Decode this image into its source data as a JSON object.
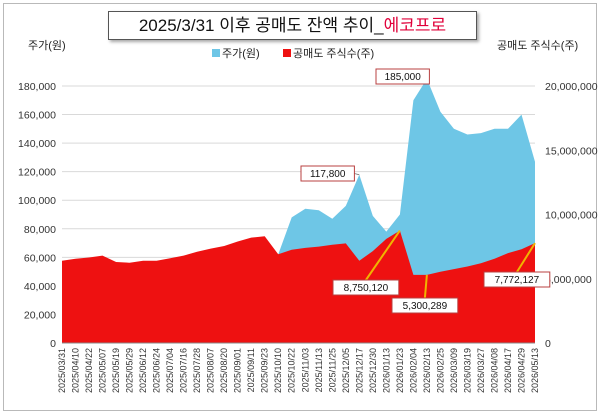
{
  "chart_data": {
    "type": "area",
    "title": "2025/3/31 이후 공매도 잔액 추이_",
    "title_highlight": "에코프로",
    "ylabel_left": "주가(원)",
    "ylabel_right": "공매도 주식수(주)",
    "legend": [
      "주가(원)",
      "공매도 주식수(주)"
    ],
    "legend_position": "top-center",
    "grid": true,
    "colors": {
      "price": "#6ec6e6",
      "short": "#ee1111",
      "callout": "#f0b400",
      "label_border": "#b84040"
    },
    "ylim_left": [
      0,
      180000
    ],
    "yticks_left": [
      "0",
      "20,000",
      "40,000",
      "60,000",
      "80,000",
      "100,000",
      "120,000",
      "140,000",
      "160,000",
      "180,000"
    ],
    "ylim_right": [
      0,
      20000000
    ],
    "yticks_right": [
      "0",
      "5,000,000",
      "10,000,000",
      "15,000,000",
      "20,000,000"
    ],
    "x_dates": [
      "2025/03/31",
      "2025/04/10",
      "2025/04/22",
      "2025/05/07",
      "2025/05/19",
      "2025/05/29",
      "2025/06/12",
      "2025/06/24",
      "2025/07/04",
      "2025/07/16",
      "2025/07/28",
      "2025/08/07",
      "2025/08/20",
      "2025/09/01",
      "2025/09/11",
      "2025/09/23",
      "2025/10/10",
      "2025/10/22",
      "2025/11/03",
      "2025/11/13",
      "2025/11/25",
      "2025/12/05",
      "2025/12/17",
      "2025/12/30",
      "2026/01/13",
      "2026/01/23",
      "2026/02/04",
      "2026/02/13",
      "2026/02/25",
      "2026/03/09",
      "2026/03/19",
      "2026/03/27",
      "2026/04/08",
      "2026/04/17",
      "2026/04/29",
      "2026/05/13"
    ],
    "price": [
      50000,
      49000,
      51000,
      49500,
      47000,
      47500,
      49000,
      47500,
      48500,
      47000,
      49000,
      53000,
      58000,
      63000,
      64500,
      66000,
      62000,
      88000,
      94000,
      93000,
      87000,
      96000,
      117800,
      89000,
      78000,
      90000,
      170000,
      185000,
      162000,
      150000,
      146000,
      147000,
      150000,
      150000,
      160000,
      127000
    ],
    "short": [
      6400000,
      6550000,
      6650000,
      6800000,
      6300000,
      6250000,
      6400000,
      6400000,
      6600000,
      6800000,
      7100000,
      7350000,
      7550000,
      7900000,
      8200000,
      8300000,
      6900000,
      7250000,
      7400000,
      7500000,
      7650000,
      7750000,
      6400000,
      7150000,
      8100000,
      8750120,
      5300289,
      5300289,
      5550000,
      5750000,
      5950000,
      6200000,
      6550000,
      7000000,
      7300000,
      7772127
    ],
    "annotations": [
      {
        "text": "185,000",
        "series": "price",
        "index": 27
      },
      {
        "text": "117,800",
        "series": "price",
        "index": 22
      },
      {
        "text": "8,750,120",
        "series": "short",
        "index": 25
      },
      {
        "text": "5,300,289",
        "series": "short",
        "index": 27
      },
      {
        "text": "7,772,127",
        "series": "short",
        "index": 35
      }
    ]
  }
}
